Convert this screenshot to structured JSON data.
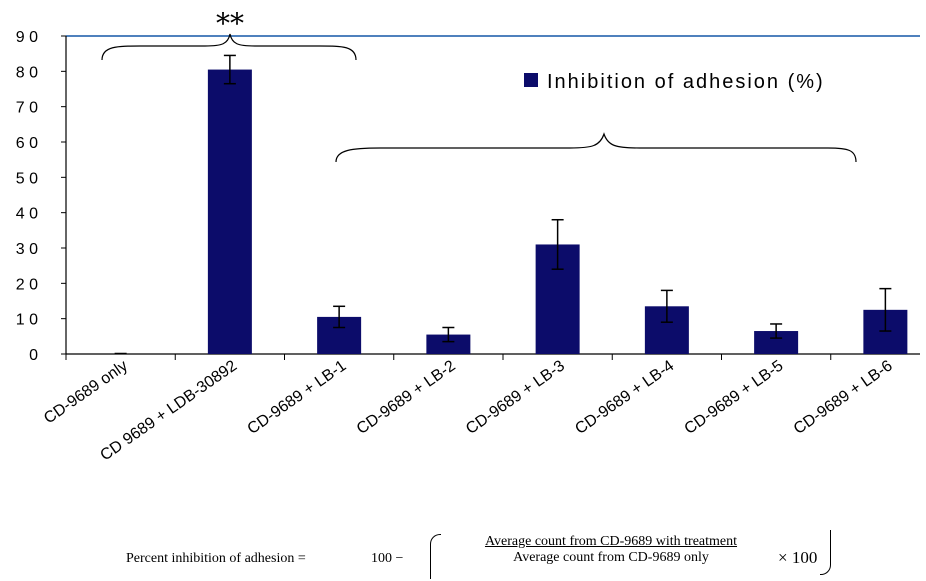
{
  "chart_data": {
    "type": "bar",
    "categories": [
      "CD-9689 only",
      "CD 9689 + LDB-30892",
      "CD-9689 + LB-1",
      "CD-9689 + LB-2",
      "CD-9689 + LB-3",
      "CD-9689 + LB-4",
      "CD-9689 + LB-5",
      "CD-9689 + LB-6"
    ],
    "series": [
      {
        "name": "Inhibition of adhesion (%)",
        "values": [
          0,
          80.5,
          10.5,
          5.5,
          31,
          13.5,
          6.5,
          12.5
        ],
        "errors": [
          0,
          4,
          3,
          2,
          7,
          4.5,
          2,
          6
        ],
        "color": "#0c0c6a"
      }
    ],
    "yticks": [
      0,
      10,
      20,
      30,
      40,
      50,
      60,
      70,
      80,
      90
    ],
    "ylim": [
      0,
      90
    ],
    "title": "",
    "xlabel": "",
    "ylabel": "",
    "grid": false,
    "legend_position": "top-right",
    "significance": "**",
    "top_line_color": "#4f81bd",
    "formula": {
      "lhs": "Percent inhibition of adhesion =",
      "hundred": "100 −",
      "numerator": "Average count from CD-9689 with treatment",
      "denominator": "Average count from CD-9689 only",
      "times": "× 100"
    }
  }
}
